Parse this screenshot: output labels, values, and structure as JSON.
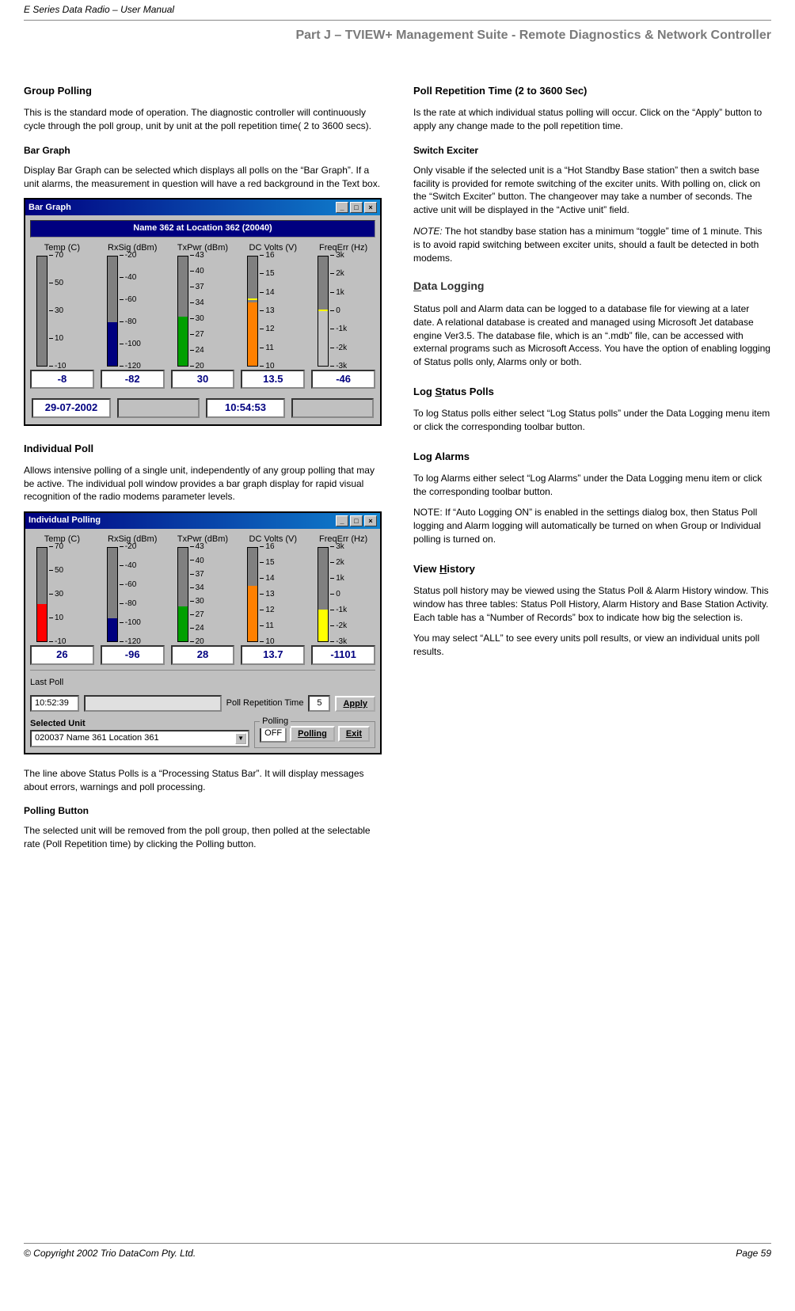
{
  "header": {
    "doc_title": "E Series Data Radio – User Manual",
    "part_title": "Part J – TVIEW+ Management Suite -  Remote Diagnostics & Network Controller"
  },
  "left": {
    "group_polling": {
      "heading": "Group Polling",
      "p1": "This is the standard mode of operation.  The diagnostic controller will continuously cycle through the poll group, unit by unit at the poll repetition time( 2 to 3600 secs)."
    },
    "bar_graph": {
      "heading": "Bar Graph",
      "p1": "Display Bar Graph can be selected which displays all polls on the “Bar Graph”.  If a unit alarms, the measurement in question will have a red background in the Text box."
    },
    "bar_graph_shot": {
      "title": "Bar Graph",
      "name_text": "Name 362 at Location 362 (20040)",
      "date": "29-07-2002",
      "time": "10:54:53",
      "gauges": [
        {
          "label": "Temp (C)",
          "ticks": [
            "70",
            "50",
            "30",
            "10",
            "-10"
          ],
          "value": "-8",
          "fill_pct": 10,
          "fill_color": "#808080",
          "bg_color": "#c0c0c0"
        },
        {
          "label": "RxSig (dBm)",
          "ticks": [
            "-20",
            "-40",
            "-60",
            "-80",
            "-100",
            "-120"
          ],
          "value": "-82",
          "fill_pct": 40,
          "fill_color": "#000080",
          "bg_color": "#c0c0c0"
        },
        {
          "label": "TxPwr (dBm)",
          "ticks": [
            "43",
            "40",
            "37",
            "34",
            "30",
            "27",
            "24",
            "20"
          ],
          "value": "30",
          "fill_pct": 45,
          "fill_color": "#00a000",
          "bg_color": "#c0c0c0"
        },
        {
          "label": "DC Volts (V)",
          "ticks": [
            "16",
            "15",
            "14",
            "13",
            "12",
            "11",
            "10"
          ],
          "value": "13.5",
          "fill_pct": 58,
          "fill_color": "#ff8000",
          "bg_color": "#c0c0c0",
          "yellow_at_pct": 60
        },
        {
          "label": "FreqErr (Hz)",
          "ticks": [
            "3k",
            "2k",
            "1k",
            "0",
            "-1k",
            "-2k",
            "-3k"
          ],
          "value": "-46",
          "fill_pct": 50,
          "fill_color": "#c0c0c0",
          "bg_color": "#c0c0c0",
          "yellow_at_pct": 50
        }
      ]
    },
    "individual_poll": {
      "heading": "Individual Poll",
      "p1": "Allows intensive polling of a single unit, independently of any group polling that may be active.  The individual poll window provides a bar graph display for rapid visual recognition of the radio modems parameter levels."
    },
    "individual_poll_shot": {
      "title": "Individual Polling",
      "gauges": [
        {
          "label": "Temp (C)",
          "ticks": [
            "70",
            "50",
            "30",
            "10",
            "-10"
          ],
          "value": "26",
          "fill_pct": 40,
          "fill_color": "#ff0000",
          "bg_color": "#c0c0c0"
        },
        {
          "label": "RxSig (dBm)",
          "ticks": [
            "-20",
            "-40",
            "-60",
            "-80",
            "-100",
            "-120"
          ],
          "value": "-96",
          "fill_pct": 25,
          "fill_color": "#000080",
          "bg_color": "#c0c0c0"
        },
        {
          "label": "TxPwr (dBm)",
          "ticks": [
            "43",
            "40",
            "37",
            "34",
            "30",
            "27",
            "24",
            "20"
          ],
          "value": "28",
          "fill_pct": 38,
          "fill_color": "#00a000",
          "bg_color": "#c0c0c0"
        },
        {
          "label": "DC Volts (V)",
          "ticks": [
            "16",
            "15",
            "14",
            "13",
            "12",
            "11",
            "10"
          ],
          "value": "13.7",
          "fill_pct": 60,
          "fill_color": "#ff8000",
          "bg_color": "#c0c0c0"
        },
        {
          "label": "FreqErr (Hz)",
          "ticks": [
            "3k",
            "2k",
            "1k",
            "0",
            "-1k",
            "-2k",
            "-3k"
          ],
          "value": "-1101",
          "fill_pct": 33,
          "fill_color": "#ffff00",
          "bg_color": "#c0c0c0",
          "yellow_at_pct": 33
        }
      ],
      "last_poll_label": "Last Poll",
      "last_poll_value": "10:52:39",
      "poll_rep_label": "Poll Repetition Time",
      "poll_rep_value": "5",
      "apply_label": "Apply",
      "selected_unit_label": "Selected Unit",
      "selected_unit_value": "020037 Name 361 Location 361",
      "polling_group_label": "Polling",
      "polling_state": "OFF",
      "polling_btn": "Polling",
      "exit_btn": "Exit"
    },
    "after_shot": {
      "p1": "The line above Status Polls is a “Processing Status Bar”.  It will display messages about errors, warnings and poll processing.",
      "polling_button_heading": "Polling Button",
      "p2": "The selected unit will be removed from the poll group, then polled at the selectable rate (Poll Repetition time) by clicking the Polling button."
    }
  },
  "right": {
    "poll_rep": {
      "heading": "Poll Repetition Time (2 to 3600 Sec)",
      "p1": "Is the rate at which individual status polling will occur.  Click on the “Apply” button to apply any change made to the poll repetition time."
    },
    "switch_exciter": {
      "heading": "Switch Exciter",
      "p1": "Only visable if the selected unit is a “Hot Standby Base station” then a switch base facility is provided for remote switching of the exciter units.  With polling on, click on the “Switch Exciter” button.  The changeover may take a number of seconds.  The active unit will be displayed in the “Active unit” field.",
      "note_label": "NOTE:",
      "note": " The hot standby base station has a minimum “toggle” time of 1 minute.  This is to avoid rapid switching between exciter units, should a fault be detected in both modems."
    },
    "data_logging": {
      "heading_ul": "D",
      "heading_rest": "ata Logging",
      "p1": "Status poll and Alarm data can be logged to a database file for viewing at a later date.  A relational database is created and managed using Microsoft Jet database engine Ver3.5.  The database file, which is an “.mdb” file, can be accessed with external programs such as Microsoft Access.  You have the option of enabling logging of Status polls only, Alarms only or both."
    },
    "log_status": {
      "heading_pre": "Log ",
      "heading_ul": "S",
      "heading_rest": "tatus Polls",
      "p1": "To log Status polls either select “Log Status polls” under the Data Logging menu item or click the corresponding toolbar button."
    },
    "log_alarms": {
      "heading": "Log Alarms",
      "p1": "To log Alarms either select “Log Alarms” under the Data Logging menu item or click the corresponding toolbar button.",
      "p2": "NOTE: If “Auto Logging ON” is enabled in the settings dialog box, then Status Poll logging and Alarm logging will automatically be turned on when Group or Individual polling is turned on."
    },
    "view_history": {
      "heading_pre": "View ",
      "heading_ul": "H",
      "heading_rest": "istory",
      "p1": "Status poll history may be viewed using the Status Poll & Alarm History window.  This window has three tables: Status Poll History, Alarm History and Base Station Activity.  Each table has a “Number of Records” box to indicate how big the selection is.",
      "p2": "You may select “ALL” to see every units poll results, or view an individual units poll results."
    }
  },
  "footer": {
    "copyright": "© Copyright 2002 Trio DataCom Pty. Ltd.",
    "page": "Page 59"
  }
}
